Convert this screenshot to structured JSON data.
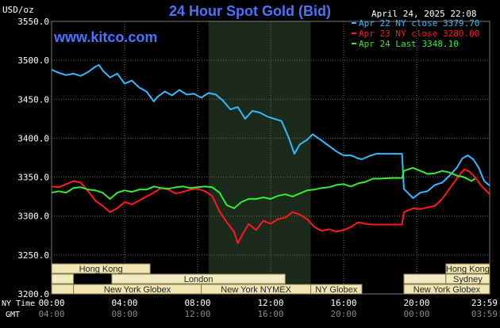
{
  "header": {
    "title": "24 Hour Spot Gold (Bid)",
    "site": "www.kitco.com",
    "unit": "USD/oz",
    "timestamp": "April 24, 2025 22:08"
  },
  "chart_data": {
    "type": "line",
    "title": "24 Hour Spot Gold (Bid)",
    "ylabel": "USD/oz",
    "ylim": [
      3200,
      3550
    ],
    "yticks": [
      "3200.0",
      "3250.0",
      "3300.0",
      "3350.0",
      "3400.0",
      "3450.0",
      "3500.0",
      "3550.0"
    ],
    "xlim": [
      0,
      24
    ],
    "xticks_ny": [
      "00:00",
      "04:00",
      "08:00",
      "12:00",
      "16:00",
      "20:00",
      "23:59"
    ],
    "xticks_gmt": [
      "04:00",
      "08:00",
      "12:00",
      "16:00",
      "20:00",
      "00:00",
      "03:59"
    ],
    "xaxis_row_labels": [
      "NY Time",
      "GMT"
    ],
    "legend_position": "top-right",
    "grid": true,
    "shaded_region": [
      8.6,
      14.2
    ],
    "series": [
      {
        "name": "Apr 22 NY close 3379.70",
        "color": "#33bbff",
        "points": [
          [
            0,
            3488
          ],
          [
            0.4,
            3484
          ],
          [
            0.8,
            3481
          ],
          [
            1.2,
            3483
          ],
          [
            1.6,
            3480
          ],
          [
            2,
            3485
          ],
          [
            2.4,
            3492
          ],
          [
            2.6,
            3494
          ],
          [
            2.8,
            3487
          ],
          [
            3.2,
            3478
          ],
          [
            3.6,
            3483
          ],
          [
            4,
            3470
          ],
          [
            4.4,
            3474
          ],
          [
            4.8,
            3465
          ],
          [
            5.2,
            3460
          ],
          [
            5.6,
            3447
          ],
          [
            5.8,
            3453
          ],
          [
            6.2,
            3460
          ],
          [
            6.6,
            3455
          ],
          [
            7,
            3462
          ],
          [
            7.4,
            3456
          ],
          [
            7.8,
            3457
          ],
          [
            8.2,
            3452
          ],
          [
            8.6,
            3458
          ],
          [
            9,
            3456
          ],
          [
            9.4,
            3448
          ],
          [
            9.8,
            3437
          ],
          [
            10.2,
            3440
          ],
          [
            10.6,
            3425
          ],
          [
            11,
            3435
          ],
          [
            11.4,
            3433
          ],
          [
            11.8,
            3428
          ],
          [
            12.2,
            3425
          ],
          [
            12.6,
            3422
          ],
          [
            13,
            3400
          ],
          [
            13.3,
            3380
          ],
          [
            13.6,
            3392
          ],
          [
            14,
            3398
          ],
          [
            14.3,
            3405
          ],
          [
            14.8,
            3397
          ],
          [
            15.2,
            3390
          ],
          [
            15.6,
            3383
          ],
          [
            16,
            3378
          ],
          [
            16.4,
            3378
          ],
          [
            16.8,
            3374
          ],
          [
            17,
            3373
          ],
          [
            17.4,
            3377
          ],
          [
            17.8,
            3380
          ],
          [
            18.4,
            3380
          ],
          [
            19.2,
            3380
          ],
          [
            19.3,
            3335
          ],
          [
            19.8,
            3323
          ],
          [
            20.2,
            3330
          ],
          [
            20.6,
            3332
          ],
          [
            21,
            3340
          ],
          [
            21.4,
            3343
          ],
          [
            21.8,
            3352
          ],
          [
            22.2,
            3362
          ],
          [
            22.5,
            3374
          ],
          [
            22.8,
            3378
          ],
          [
            23.1,
            3373
          ],
          [
            23.4,
            3362
          ],
          [
            23.7,
            3345
          ],
          [
            24,
            3339
          ]
        ]
      },
      {
        "name": "Apr 23 NY close 3280.00",
        "color": "#ff1a1a",
        "points": [
          [
            0,
            3338
          ],
          [
            0.4,
            3337
          ],
          [
            0.8,
            3341
          ],
          [
            1.2,
            3345
          ],
          [
            1.6,
            3343
          ],
          [
            2,
            3332
          ],
          [
            2.4,
            3320
          ],
          [
            2.8,
            3313
          ],
          [
            3.2,
            3305
          ],
          [
            3.6,
            3310
          ],
          [
            4,
            3318
          ],
          [
            4.4,
            3315
          ],
          [
            4.8,
            3320
          ],
          [
            5.2,
            3325
          ],
          [
            5.6,
            3330
          ],
          [
            6,
            3336
          ],
          [
            6.4,
            3334
          ],
          [
            6.8,
            3329
          ],
          [
            7.2,
            3331
          ],
          [
            7.6,
            3334
          ],
          [
            8,
            3335
          ],
          [
            8.4,
            3332
          ],
          [
            8.8,
            3326
          ],
          [
            9.2,
            3306
          ],
          [
            9.6,
            3292
          ],
          [
            10,
            3280
          ],
          [
            10.2,
            3265
          ],
          [
            10.5,
            3278
          ],
          [
            10.8,
            3290
          ],
          [
            11.2,
            3282
          ],
          [
            11.6,
            3294
          ],
          [
            12,
            3290
          ],
          [
            12.4,
            3296
          ],
          [
            12.8,
            3298
          ],
          [
            13.2,
            3305
          ],
          [
            13.6,
            3302
          ],
          [
            14,
            3296
          ],
          [
            14.4,
            3286
          ],
          [
            14.8,
            3281
          ],
          [
            15.2,
            3283
          ],
          [
            15.6,
            3280
          ],
          [
            16,
            3282
          ],
          [
            16.4,
            3286
          ],
          [
            16.8,
            3292
          ],
          [
            17.2,
            3290
          ],
          [
            17.6,
            3289
          ],
          [
            18,
            3289
          ],
          [
            18.6,
            3289
          ],
          [
            19.2,
            3289
          ],
          [
            19.3,
            3305
          ],
          [
            19.8,
            3310
          ],
          [
            20.2,
            3309
          ],
          [
            20.6,
            3311
          ],
          [
            21,
            3313
          ],
          [
            21.4,
            3322
          ],
          [
            21.8,
            3335
          ],
          [
            22.2,
            3348
          ],
          [
            22.6,
            3360
          ],
          [
            22.9,
            3357
          ],
          [
            23.2,
            3350
          ],
          [
            23.5,
            3340
          ],
          [
            24,
            3328
          ]
        ]
      },
      {
        "name": "Apr 24 Last 3348.10",
        "color": "#33ee33",
        "points": [
          [
            0,
            3330
          ],
          [
            0.4,
            3332
          ],
          [
            0.8,
            3330
          ],
          [
            1.2,
            3336
          ],
          [
            1.6,
            3337
          ],
          [
            2,
            3334
          ],
          [
            2.4,
            3333
          ],
          [
            2.8,
            3330
          ],
          [
            3.2,
            3322
          ],
          [
            3.6,
            3330
          ],
          [
            4,
            3333
          ],
          [
            4.4,
            3331
          ],
          [
            4.8,
            3334
          ],
          [
            5.2,
            3334
          ],
          [
            5.6,
            3338
          ],
          [
            6,
            3336
          ],
          [
            6.4,
            3335
          ],
          [
            6.8,
            3337
          ],
          [
            7.2,
            3338
          ],
          [
            7.6,
            3336
          ],
          [
            8,
            3337
          ],
          [
            8.4,
            3338
          ],
          [
            8.8,
            3337
          ],
          [
            9.2,
            3330
          ],
          [
            9.6,
            3314
          ],
          [
            10,
            3310
          ],
          [
            10.4,
            3318
          ],
          [
            10.8,
            3322
          ],
          [
            11.2,
            3322
          ],
          [
            11.6,
            3324
          ],
          [
            12,
            3322
          ],
          [
            12.4,
            3326
          ],
          [
            12.8,
            3328
          ],
          [
            13.2,
            3325
          ],
          [
            13.6,
            3329
          ],
          [
            14,
            3333
          ],
          [
            14.4,
            3334
          ],
          [
            14.8,
            3336
          ],
          [
            15.2,
            3337
          ],
          [
            15.6,
            3340
          ],
          [
            16,
            3341
          ],
          [
            16.4,
            3338
          ],
          [
            16.8,
            3342
          ],
          [
            17.2,
            3344
          ],
          [
            17.6,
            3348
          ],
          [
            18,
            3348
          ],
          [
            18.6,
            3349
          ],
          [
            19.2,
            3349
          ],
          [
            19.3,
            3358
          ],
          [
            19.8,
            3362
          ],
          [
            20.2,
            3358
          ],
          [
            20.6,
            3354
          ],
          [
            21,
            3355
          ],
          [
            21.4,
            3358
          ],
          [
            21.8,
            3356
          ],
          [
            22.2,
            3352
          ],
          [
            22.6,
            3350
          ],
          [
            23,
            3345
          ],
          [
            23.2,
            3348
          ]
        ]
      }
    ]
  },
  "sessions": {
    "rows": [
      [
        {
          "label": "Hong Kong",
          "start": 0,
          "end": 5.4
        },
        {
          "label": "Hong Kong",
          "start": 21.6,
          "end": 24
        }
      ],
      [
        {
          "label": "",
          "start": 0,
          "end": 1.2
        },
        {
          "label": "London",
          "start": 3.3,
          "end": 12.8
        },
        {
          "label": "",
          "start": 19.3,
          "end": 21.6
        },
        {
          "label": "Sydney",
          "start": 21.6,
          "end": 24
        }
      ],
      [
        {
          "label": "",
          "start": 0,
          "end": 1.2
        },
        {
          "label": "New York Globex",
          "start": 1.2,
          "end": 8.2
        },
        {
          "label": "New York NYMEX",
          "start": 8.2,
          "end": 14.2
        },
        {
          "label": "NY Globex",
          "start": 14.2,
          "end": 17.0
        },
        {
          "label": "New York Globex",
          "start": 19.3,
          "end": 24
        }
      ]
    ],
    "bar_colors": [
      "#f0e6b4",
      "#f3ebc2",
      "#f0e6b4"
    ]
  }
}
